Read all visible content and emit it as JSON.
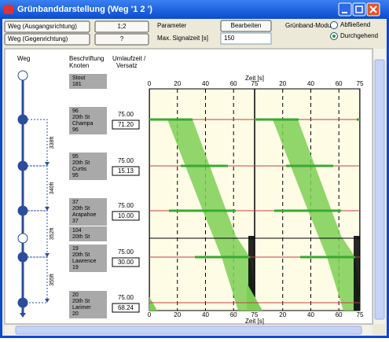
{
  "window": {
    "title": "Grünbanddarstellung (Weg '1 2 ')"
  },
  "toolbar": {
    "route_out_label": "Weg (Ausgangsrichtung)",
    "route_out_value": "1;2",
    "route_back_label": "Weg (Gegenrichtung)",
    "route_back_value": "?",
    "parameter_label": "Parameter",
    "edit_button": "Bearbeiten",
    "max_signal_label": "Max. Signalzeit [s]",
    "max_signal_value": "150",
    "mode_label": "Grünband-Modus",
    "mode_options": [
      "Abfließend",
      "Durchgehend"
    ]
  },
  "columns": {
    "route": "Weg",
    "labels": [
      "Beschriftung",
      "Knoten"
    ],
    "cycle": [
      "Umlaufzeit /",
      "Versatz"
    ]
  },
  "nodes": [
    {
      "lines": [
        "Stout",
        "181"
      ]
    },
    {
      "lines": [
        "96",
        "20th St",
        "Champa",
        "96"
      ],
      "cycle": "75.00",
      "offset": "71.20"
    },
    {
      "lines": [
        "95",
        "20th St",
        "Curtis",
        "95"
      ],
      "cycle": "75.00",
      "offset": "15.13"
    },
    {
      "lines": [
        "37",
        "20th St",
        "Arapahoe",
        "37"
      ],
      "cycle": "75.00",
      "offset": "10.00"
    },
    {
      "lines": [
        "104",
        "20th St"
      ]
    },
    {
      "lines": [
        "19",
        "20th St",
        "Lawrence",
        "19"
      ],
      "cycle": "75.00",
      "offset": "30.00"
    },
    {
      "lines": [
        "20",
        "20th St",
        "Larimer",
        "20"
      ],
      "cycle": "75.00",
      "offset": "68.24"
    }
  ],
  "distances": [
    "338ft",
    "340ft",
    "352ft",
    "355ft"
  ],
  "chart": {
    "axis_label": "Zeit [s]",
    "ticks": [
      "0",
      "20",
      "40",
      "60",
      "75",
      "20",
      "40",
      "60",
      "75"
    ]
  }
}
